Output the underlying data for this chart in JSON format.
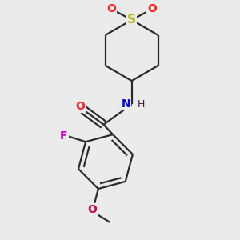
{
  "bg_color": "#ebebeb",
  "bond_color": "#2a2a2a",
  "sulfur_color": "#b8b800",
  "oxygen_color": "#ff2020",
  "nitrogen_color": "#0000e0",
  "fluorine_color": "#cc00cc",
  "methoxy_o_color": "#cc0044",
  "line_width": 1.6,
  "figsize": [
    3.0,
    3.0
  ],
  "dpi": 100,
  "xlim": [
    -2.5,
    2.5
  ],
  "ylim": [
    -3.2,
    2.8
  ]
}
